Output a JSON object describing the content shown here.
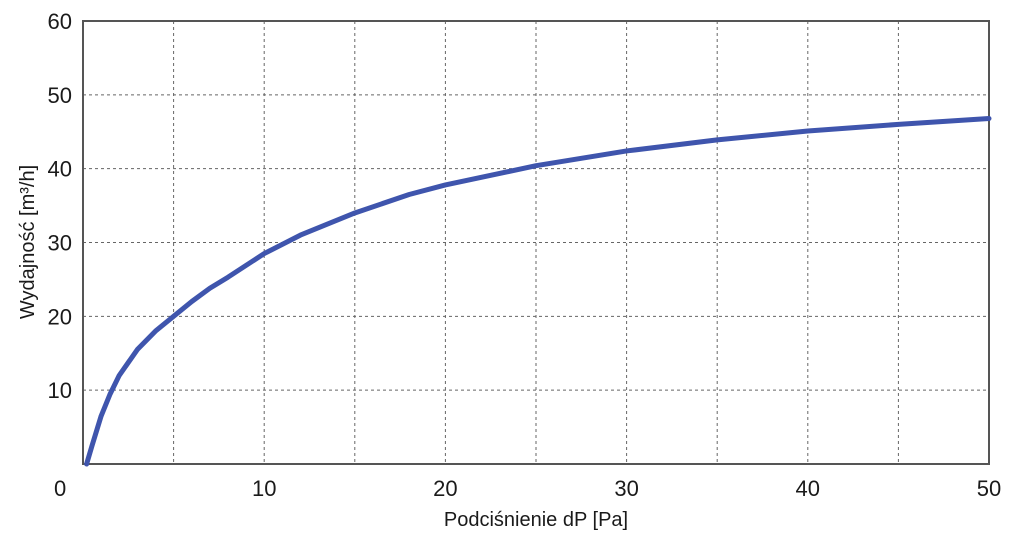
{
  "chart_data": {
    "type": "line",
    "title": "",
    "xlabel": "Podciśnienie dP [Pa]",
    "ylabel": "Wydajność [m³/h]",
    "xlim": [
      0,
      50
    ],
    "ylim": [
      0,
      60
    ],
    "x_ticks": [
      0,
      10,
      20,
      30,
      40,
      50
    ],
    "y_ticks": [
      10,
      20,
      30,
      40,
      50,
      60
    ],
    "x_grid": [
      5,
      10,
      15,
      20,
      25,
      30,
      35,
      40,
      45
    ],
    "y_grid": [
      10,
      20,
      30,
      40,
      50
    ],
    "grid": true,
    "line_color": "#3f55ad",
    "series": [
      {
        "x": [
          0.2,
          0.5,
          1,
          1.5,
          2,
          3,
          4,
          5,
          6,
          7,
          8,
          10,
          12,
          15,
          18,
          20,
          25,
          30,
          35,
          40,
          45,
          50
        ],
        "y": [
          0,
          2.5,
          6.5,
          9.5,
          12,
          15.5,
          18,
          20,
          22,
          23.8,
          25.3,
          28.5,
          31,
          34,
          36.5,
          37.8,
          40.4,
          42.4,
          43.9,
          45.1,
          46.0,
          46.8
        ]
      }
    ]
  }
}
